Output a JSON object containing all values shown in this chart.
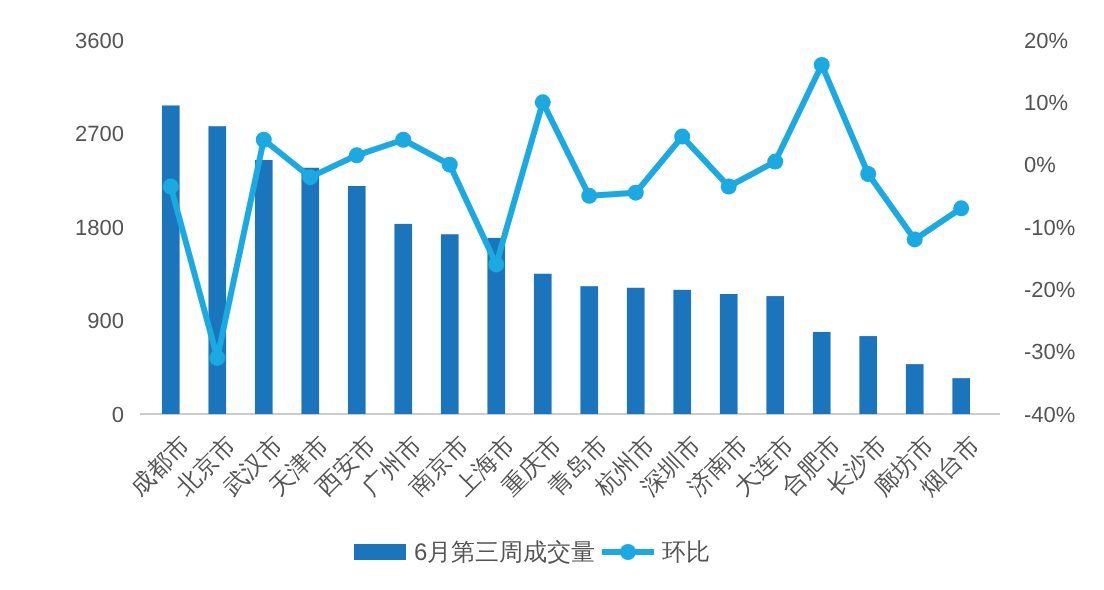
{
  "chart_data": {
    "type": "bar",
    "categories": [
      "成都市",
      "北京市",
      "武汉市",
      "天津市",
      "西安市",
      "广州市",
      "南京市",
      "上海市",
      "重庆市",
      "青岛市",
      "杭州市",
      "深圳市",
      "济南市",
      "大连市",
      "合肥市",
      "长沙市",
      "廊坊市",
      "烟台市"
    ],
    "series": [
      {
        "name": "6月第三周成交量",
        "color": "#1b75bc",
        "values": [
          2970,
          2770,
          2445,
          2370,
          2195,
          1830,
          1730,
          1695,
          1350,
          1230,
          1215,
          1195,
          1155,
          1135,
          790,
          750,
          480,
          345
        ]
      },
      {
        "name": "环比",
        "type": "line",
        "axis": "y2",
        "color": "#1ba9e1",
        "values": [
          -3.5,
          -31,
          4,
          -2,
          1.5,
          4,
          0,
          -16,
          10,
          -5,
          -4.5,
          4.5,
          -3.5,
          0.5,
          16,
          -1.5,
          -12,
          -7
        ]
      }
    ],
    "ylim": [
      0,
      3600
    ],
    "yticks": [
      0,
      900,
      1800,
      2700,
      3600
    ],
    "y2lim": [
      -40,
      20
    ],
    "y2ticks": [
      {
        "value": -40,
        "label": "-40%"
      },
      {
        "value": -30,
        "label": "-30%"
      },
      {
        "value": -20,
        "label": "-20%"
      },
      {
        "value": -10,
        "label": "-10%"
      },
      {
        "value": 0,
        "label": "0%"
      },
      {
        "value": 10,
        "label": "10%"
      },
      {
        "value": 20,
        "label": "20%"
      }
    ],
    "marker": "circle",
    "legend": "bottom",
    "grid": false
  }
}
